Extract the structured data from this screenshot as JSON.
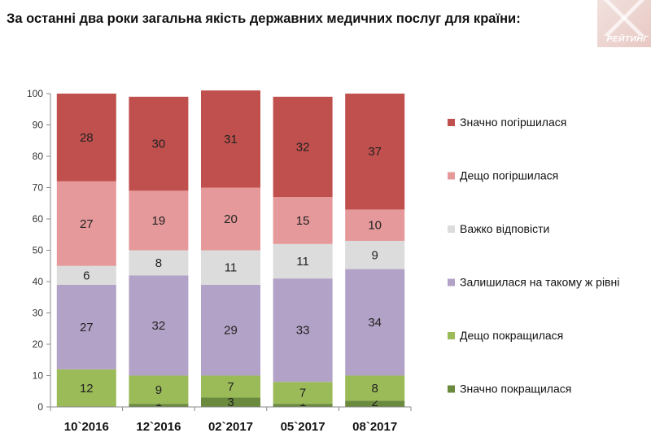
{
  "header": {
    "title": "За останні два роки загальна якість державних медичних послуг для країни:",
    "logo_text": "РЕЙТИНГ"
  },
  "chart_data": {
    "type": "bar",
    "stacked": true,
    "title": "За останні два роки загальна якість державних медичних послуг для країни:",
    "categories": [
      "10`2016",
      "12`2016",
      "02`2017",
      "05`2017",
      "08`2017"
    ],
    "ylim": [
      0,
      100
    ],
    "yticks": [
      0,
      10,
      20,
      30,
      40,
      50,
      60,
      70,
      80,
      90,
      100
    ],
    "grid": false,
    "legend_position": "right",
    "series": [
      {
        "name": "Значно покращилася",
        "color": "#6a8a3e",
        "values": [
          0,
          1,
          3,
          1,
          2
        ]
      },
      {
        "name": "Дещо покращилася",
        "color": "#9bbb59",
        "values": [
          12,
          9,
          7,
          7,
          8
        ]
      },
      {
        "name": "Залишилася на такому ж рівні",
        "color": "#b3a2c7",
        "values": [
          27,
          32,
          29,
          33,
          34
        ]
      },
      {
        "name": "Важко відповісти",
        "color": "#dcdcdc",
        "values": [
          6,
          8,
          11,
          11,
          9
        ]
      },
      {
        "name": "Дещо погіршилася",
        "color": "#e6999a",
        "values": [
          27,
          19,
          20,
          15,
          10
        ]
      },
      {
        "name": "Значно погіршилася",
        "color": "#c0504d",
        "values": [
          28,
          30,
          31,
          32,
          37
        ]
      }
    ]
  }
}
